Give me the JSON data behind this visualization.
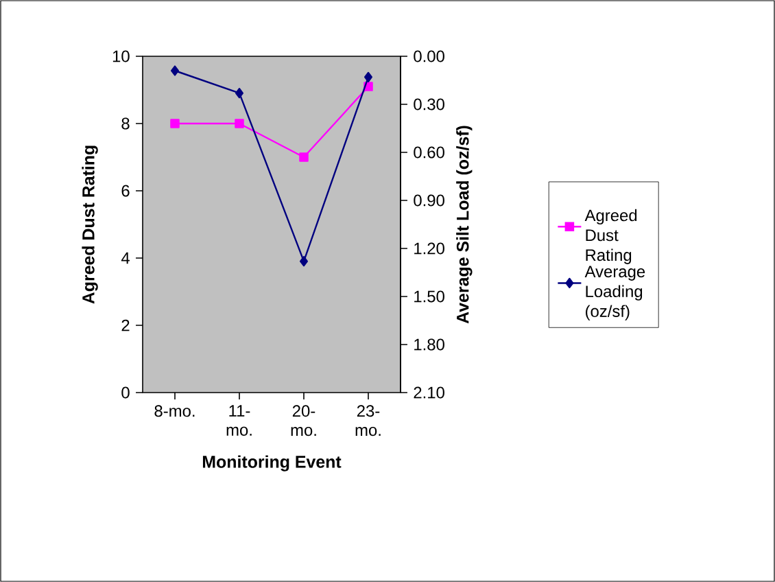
{
  "chart_data": {
    "type": "line",
    "xlabel": "Monitoring Event",
    "ylabel": "Agreed Dust Rating",
    "y2label": "Average Silt Load (oz/sf)",
    "categories": [
      "8-mo.",
      "11-mo.",
      "20-mo.",
      "23-mo."
    ],
    "series": [
      {
        "name": "Agreed Dust Rating",
        "color": "#ff00ff",
        "marker": "square",
        "values": [
          8,
          8,
          7,
          9.1
        ]
      },
      {
        "name": "Average Loading (oz/sf)",
        "color": "#000080",
        "marker": "diamond",
        "axis": "y2",
        "values": [
          0.09,
          0.23,
          1.28,
          0.13
        ]
      }
    ],
    "ylim": [
      0,
      10
    ],
    "yticks": [
      0,
      2,
      4,
      6,
      8,
      10
    ],
    "y2lim": [
      2.1,
      0
    ],
    "y2ticks": [
      {
        "value": 0,
        "label": "0.00"
      },
      {
        "value": 0.3,
        "label": "0.30"
      },
      {
        "value": 0.6,
        "label": "0.60"
      },
      {
        "value": 0.9,
        "label": "0.90"
      },
      {
        "value": 1.2,
        "label": "1.20"
      },
      {
        "value": 1.5,
        "label": "1.50"
      },
      {
        "value": 1.8,
        "label": "1.80"
      },
      {
        "value": 2.1,
        "label": "2.10"
      }
    ],
    "grid": false,
    "legend": "right",
    "line_style": "solid"
  }
}
